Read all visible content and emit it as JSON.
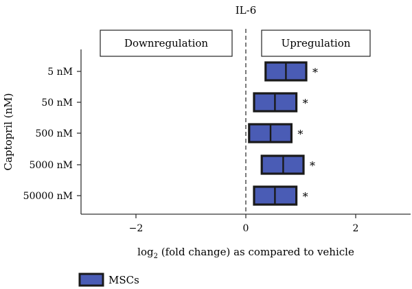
{
  "chart_data": {
    "type": "box",
    "title": "IL-6",
    "xlabel_prefix": "log",
    "xlabel_sub": "2",
    "xlabel_suffix": " (fold change) as compared to vehicle",
    "ylabel": "Captopril (nM)",
    "xlim": [
      -3,
      3
    ],
    "xticks": [
      -2,
      0,
      2
    ],
    "xtick_labels": [
      "−2",
      "0",
      "2"
    ],
    "categories": [
      "5 nM",
      "50 nM",
      "500 nM",
      "5000 nM",
      "50000 nM"
    ],
    "series": [
      {
        "name": "MSCs",
        "color": "#4a5cb5",
        "edge_color": "#1a1a1a",
        "boxes": [
          {
            "low": 0.36,
            "median": 0.73,
            "high": 1.1
          },
          {
            "low": 0.15,
            "median": 0.53,
            "high": 0.92
          },
          {
            "low": 0.06,
            "median": 0.45,
            "high": 0.83
          },
          {
            "low": 0.29,
            "median": 0.68,
            "high": 1.05
          },
          {
            "low": 0.15,
            "median": 0.53,
            "high": 0.92
          }
        ]
      }
    ],
    "significance": [
      "*",
      "*",
      "*",
      "*",
      "*"
    ],
    "annotations": {
      "left": "Downregulation",
      "right": "Upregulation"
    },
    "reference_line": 0,
    "grid": false,
    "legend_position": "bottom-left"
  }
}
